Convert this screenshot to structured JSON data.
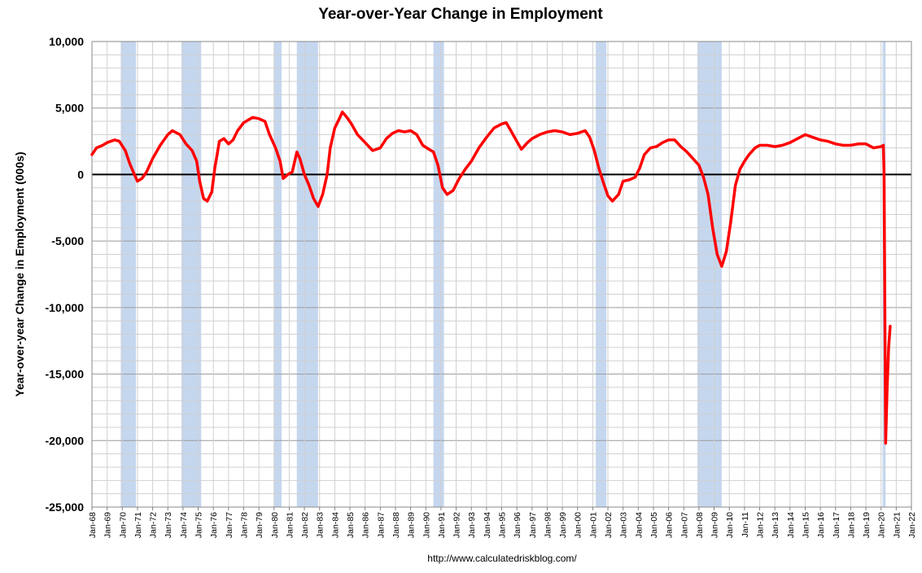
{
  "chart_data": {
    "type": "line",
    "title": "Year-over-Year Change in Employment",
    "ylabel": "Year-over-year Change in Employment (000s)",
    "xlabel": "",
    "source": "http://www.calculatedriskblog.com/",
    "ylim": [
      -25000,
      10000
    ],
    "yticks": [
      10000,
      5000,
      0,
      -5000,
      -10000,
      -15000,
      -20000,
      -25000
    ],
    "ytick_labels": [
      "10,000",
      "5,000",
      "0",
      "-5,000",
      "-10,000",
      "-15,000",
      "-20,000",
      "-25,000"
    ],
    "xlim": [
      1968.0,
      2022.0
    ],
    "xtick_labels": [
      "Jan-68",
      "Jan-69",
      "Jan-70",
      "Jan-71",
      "Jan-72",
      "Jan-73",
      "Jan-74",
      "Jan-75",
      "Jan-76",
      "Jan-77",
      "Jan-78",
      "Jan-79",
      "Jan-80",
      "Jan-81",
      "Jan-82",
      "Jan-83",
      "Jan-84",
      "Jan-85",
      "Jan-86",
      "Jan-87",
      "Jan-88",
      "Jan-89",
      "Jan-90",
      "Jan-91",
      "Jan-92",
      "Jan-93",
      "Jan-94",
      "Jan-95",
      "Jan-96",
      "Jan-97",
      "Jan-98",
      "Jan-99",
      "Jan-00",
      "Jan-01",
      "Jan-02",
      "Jan-03",
      "Jan-04",
      "Jan-05",
      "Jan-06",
      "Jan-07",
      "Jan-08",
      "Jan-09",
      "Jan-10",
      "Jan-11",
      "Jan-12",
      "Jan-13",
      "Jan-14",
      "Jan-15",
      "Jan-16",
      "Jan-17",
      "Jan-18",
      "Jan-19",
      "Jan-20",
      "Jan-21",
      "Jan-22"
    ],
    "grid": true,
    "zero_line": true,
    "recessions": [
      [
        1969.9,
        1970.9
      ],
      [
        1973.9,
        1975.2
      ],
      [
        1980.0,
        1980.5
      ],
      [
        1981.5,
        1982.9
      ],
      [
        1990.5,
        1991.2
      ],
      [
        2001.2,
        2001.9
      ],
      [
        2007.9,
        2009.5
      ],
      [
        2020.1,
        2020.3
      ]
    ],
    "recession_color": "#c5d7ef",
    "series": [
      {
        "color": "#ff0000",
        "points": [
          [
            1968.0,
            1500
          ],
          [
            1968.3,
            2000
          ],
          [
            1968.7,
            2200
          ],
          [
            1969.0,
            2400
          ],
          [
            1969.5,
            2600
          ],
          [
            1969.8,
            2500
          ],
          [
            1970.2,
            1800
          ],
          [
            1970.5,
            800
          ],
          [
            1970.8,
            0
          ],
          [
            1971.0,
            -500
          ],
          [
            1971.3,
            -300
          ],
          [
            1971.6,
            200
          ],
          [
            1972.0,
            1200
          ],
          [
            1972.5,
            2200
          ],
          [
            1973.0,
            3000
          ],
          [
            1973.3,
            3300
          ],
          [
            1973.8,
            3000
          ],
          [
            1974.2,
            2300
          ],
          [
            1974.6,
            1800
          ],
          [
            1974.9,
            1000
          ],
          [
            1975.1,
            -500
          ],
          [
            1975.35,
            -1800
          ],
          [
            1975.6,
            -2000
          ],
          [
            1975.9,
            -1300
          ],
          [
            1976.1,
            500
          ],
          [
            1976.4,
            2500
          ],
          [
            1976.7,
            2700
          ],
          [
            1977.0,
            2300
          ],
          [
            1977.3,
            2600
          ],
          [
            1977.6,
            3300
          ],
          [
            1978.0,
            3900
          ],
          [
            1978.3,
            4100
          ],
          [
            1978.6,
            4300
          ],
          [
            1979.0,
            4200
          ],
          [
            1979.4,
            4000
          ],
          [
            1979.7,
            3000
          ],
          [
            1980.1,
            2000
          ],
          [
            1980.4,
            1000
          ],
          [
            1980.6,
            -300
          ],
          [
            1980.9,
            0
          ],
          [
            1981.2,
            200
          ],
          [
            1981.5,
            1700
          ],
          [
            1981.7,
            1200
          ],
          [
            1982.0,
            0
          ],
          [
            1982.3,
            -800
          ],
          [
            1982.6,
            -1800
          ],
          [
            1982.9,
            -2400
          ],
          [
            1983.2,
            -1500
          ],
          [
            1983.5,
            0
          ],
          [
            1983.7,
            2000
          ],
          [
            1984.0,
            3500
          ],
          [
            1984.3,
            4200
          ],
          [
            1984.5,
            4700
          ],
          [
            1984.8,
            4300
          ],
          [
            1985.1,
            3800
          ],
          [
            1985.5,
            3000
          ],
          [
            1986.0,
            2400
          ],
          [
            1986.5,
            1800
          ],
          [
            1987.0,
            2000
          ],
          [
            1987.4,
            2700
          ],
          [
            1987.8,
            3100
          ],
          [
            1988.2,
            3300
          ],
          [
            1988.6,
            3200
          ],
          [
            1989.0,
            3300
          ],
          [
            1989.4,
            3000
          ],
          [
            1989.8,
            2200
          ],
          [
            1990.2,
            1900
          ],
          [
            1990.5,
            1700
          ],
          [
            1990.8,
            700
          ],
          [
            1991.1,
            -1000
          ],
          [
            1991.4,
            -1500
          ],
          [
            1991.8,
            -1200
          ],
          [
            1992.2,
            -300
          ],
          [
            1992.6,
            400
          ],
          [
            1993.0,
            1000
          ],
          [
            1993.5,
            2000
          ],
          [
            1994.0,
            2800
          ],
          [
            1994.5,
            3500
          ],
          [
            1995.0,
            3800
          ],
          [
            1995.3,
            3900
          ],
          [
            1995.6,
            3300
          ],
          [
            1996.0,
            2500
          ],
          [
            1996.3,
            1900
          ],
          [
            1996.7,
            2400
          ],
          [
            1997.0,
            2700
          ],
          [
            1997.5,
            3000
          ],
          [
            1998.0,
            3200
          ],
          [
            1998.5,
            3300
          ],
          [
            1999.0,
            3200
          ],
          [
            1999.5,
            3000
          ],
          [
            2000.0,
            3100
          ],
          [
            2000.5,
            3300
          ],
          [
            2000.8,
            2800
          ],
          [
            2001.1,
            1800
          ],
          [
            2001.4,
            500
          ],
          [
            2001.7,
            -600
          ],
          [
            2002.0,
            -1600
          ],
          [
            2002.3,
            -2000
          ],
          [
            2002.7,
            -1500
          ],
          [
            2003.0,
            -500
          ],
          [
            2003.4,
            -400
          ],
          [
            2003.8,
            -200
          ],
          [
            2004.1,
            500
          ],
          [
            2004.4,
            1500
          ],
          [
            2004.8,
            2000
          ],
          [
            2005.2,
            2100
          ],
          [
            2005.6,
            2400
          ],
          [
            2006.0,
            2600
          ],
          [
            2006.4,
            2600
          ],
          [
            2006.8,
            2100
          ],
          [
            2007.2,
            1700
          ],
          [
            2007.6,
            1200
          ],
          [
            2008.0,
            700
          ],
          [
            2008.3,
            -200
          ],
          [
            2008.6,
            -1500
          ],
          [
            2008.9,
            -4000
          ],
          [
            2009.2,
            -6000
          ],
          [
            2009.5,
            -6900
          ],
          [
            2009.8,
            -5800
          ],
          [
            2010.1,
            -3500
          ],
          [
            2010.4,
            -800
          ],
          [
            2010.7,
            400
          ],
          [
            2011.0,
            1000
          ],
          [
            2011.3,
            1500
          ],
          [
            2011.7,
            2000
          ],
          [
            2012.0,
            2200
          ],
          [
            2012.5,
            2200
          ],
          [
            2013.0,
            2100
          ],
          [
            2013.5,
            2200
          ],
          [
            2014.0,
            2400
          ],
          [
            2014.5,
            2700
          ],
          [
            2015.0,
            3000
          ],
          [
            2015.5,
            2800
          ],
          [
            2016.0,
            2600
          ],
          [
            2016.5,
            2500
          ],
          [
            2017.0,
            2300
          ],
          [
            2017.5,
            2200
          ],
          [
            2018.0,
            2200
          ],
          [
            2018.5,
            2300
          ],
          [
            2019.0,
            2300
          ],
          [
            2019.5,
            2000
          ],
          [
            2020.0,
            2100
          ],
          [
            2020.15,
            2200
          ],
          [
            2020.2,
            0
          ],
          [
            2020.3,
            -20200
          ],
          [
            2020.4,
            -16000
          ],
          [
            2020.5,
            -13000
          ],
          [
            2020.6,
            -11400
          ]
        ]
      }
    ]
  }
}
